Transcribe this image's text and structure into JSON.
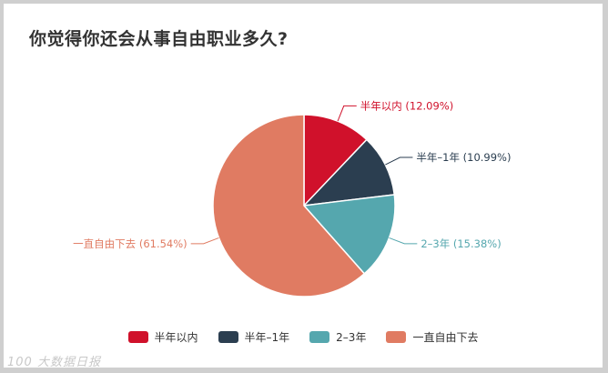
{
  "title": "你觉得你还会从事自由职业多久?",
  "watermark": "100 大数据日报",
  "chart_data": {
    "type": "pie",
    "title": "你觉得你还会从事自由职业多久?",
    "slices": [
      {
        "label": "半年以内",
        "value": 12.09,
        "display": "半年以内 (12.09%)",
        "color": "#d0112b"
      },
      {
        "label": "半年–1年",
        "value": 10.99,
        "display": "半年–1年 (10.99%)",
        "color": "#2b3e50"
      },
      {
        "label": "2–3年",
        "value": 15.38,
        "display": "2–3年 (15.38%)",
        "color": "#55a7ae"
      },
      {
        "label": "一直自由下去",
        "value": 61.54,
        "display": "一直自由下去 (61.54%)",
        "color": "#e07b62"
      }
    ],
    "legend_position": "bottom"
  }
}
